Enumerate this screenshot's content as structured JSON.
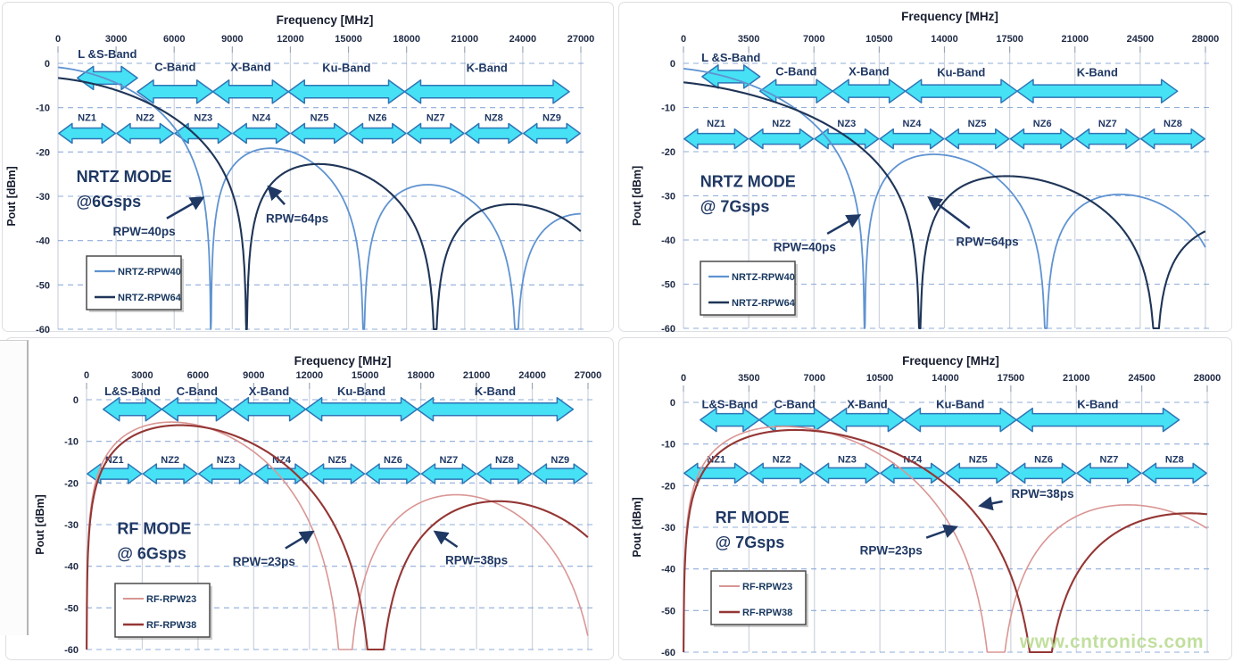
{
  "watermark": {
    "text": "www.cntronics.com",
    "color": "#b7da8e"
  },
  "colors": {
    "grid_vertical": "#cdd3dd",
    "grid_horizontal": "#7c9fd3",
    "tick_text": "#1f2a44",
    "axis_title": "#161c2e",
    "band_fill": "#46E1F4",
    "band_stroke": "#2E75B6",
    "navy_label": "#1F3864",
    "legend_border": "#4a4a4a",
    "legend_text": "#17375E",
    "annotation_arrow": "#1F3864"
  },
  "chart_data": [
    {
      "id": "nrtz-6gsps",
      "type": "line",
      "mode": "NRTZ",
      "sample_rate_gsps": 6,
      "x_axis": {
        "title": "Frequency [MHz]",
        "ticks": [
          0,
          3000,
          6000,
          9000,
          12000,
          15000,
          18000,
          21000,
          24000,
          27000
        ],
        "max_mhz": 27000
      },
      "y_axis": {
        "title": "Pout [dBm]",
        "ticks": [
          0,
          -10,
          -20,
          -30,
          -40,
          -50,
          -60
        ],
        "min_dbm": -60,
        "max_dbm": 0
      },
      "mode_label": {
        "lines": [
          "NRTZ MODE",
          "@6Gsps"
        ],
        "f_mhz": 950,
        "dbm": -25.6
      },
      "bands": [
        {
          "label": "L &S-Band",
          "f1_mhz": 1000,
          "f2_mhz": 4100,
          "arrow_dbm": -3.3,
          "label_dbm": 2.0
        },
        {
          "label": "C-Band",
          "f1_mhz": 4100,
          "f2_mhz": 8000,
          "arrow_dbm": -6.4,
          "label_dbm": -0.9
        },
        {
          "label": "X-Band",
          "f1_mhz": 8000,
          "f2_mhz": 11900,
          "arrow_dbm": -6.4,
          "label_dbm": -0.9
        },
        {
          "label": "Ku-Band",
          "f1_mhz": 11900,
          "f2_mhz": 17900,
          "arrow_dbm": -6.4,
          "label_dbm": -1.1
        },
        {
          "label": "K-Band",
          "f1_mhz": 17900,
          "f2_mhz": 26400,
          "arrow_dbm": -6.4,
          "label_dbm": -1.1
        }
      ],
      "nyquist_zones": {
        "labels": [
          "NZ1",
          "NZ2",
          "NZ3",
          "NZ4",
          "NZ5",
          "NZ6",
          "NZ7",
          "NZ8",
          "NZ9"
        ],
        "zone_width_mhz": 3000,
        "arrow_dbm": -15.8,
        "label_dbm": -12.2
      },
      "series": [
        {
          "name": "NRTZ-RPW40",
          "rpw_ps": 40,
          "color": "#5F93D1",
          "width": 1.8,
          "model": "nrtz",
          "tau_ps": 126.7,
          "p0_db": -0.9,
          "rolloff_db_per_ghz": 0.45,
          "nulls_mhz": [
            7893,
            15786,
            23680
          ]
        },
        {
          "name": "NRTZ-RPW64",
          "rpw_ps": 64,
          "color": "#1F3557",
          "width": 2.1,
          "model": "nrtz",
          "tau_ps": 102.7,
          "p0_db": -3.3,
          "rolloff_db_per_ghz": 0.45,
          "nulls_mhz": [
            9737,
            19474
          ]
        }
      ],
      "annotations": [
        {
          "text": "RPW=40ps",
          "f_mhz": 4450,
          "dbm": -37.9,
          "tip_f_mhz": 7450,
          "tip_dbm": -30.4
        },
        {
          "text": "RPW=64ps",
          "f_mhz": 12350,
          "dbm": -34.9,
          "tip_f_mhz": 10900,
          "tip_dbm": -28.0
        }
      ]
    },
    {
      "id": "nrtz-7gsps",
      "type": "line",
      "mode": "NRTZ",
      "sample_rate_gsps": 7,
      "x_axis": {
        "title": "Frequency [MHz]",
        "ticks": [
          0,
          3500,
          7000,
          10500,
          14000,
          17500,
          21000,
          24500,
          28000
        ],
        "max_mhz": 28000
      },
      "y_axis": {
        "title": "Pout [dBm]",
        "ticks": [
          0,
          -10,
          -20,
          -30,
          -40,
          -50,
          -60
        ],
        "min_dbm": -60,
        "max_dbm": 0
      },
      "mode_label": {
        "lines": [
          "NRTZ MODE",
          "@ 7Gsps"
        ],
        "f_mhz": 900,
        "dbm": -26.8
      },
      "bands": [
        {
          "label": "L &S-Band",
          "f1_mhz": 1000,
          "f2_mhz": 4100,
          "arrow_dbm": -3.0,
          "label_dbm": 1.2
        },
        {
          "label": "C-Band",
          "f1_mhz": 4100,
          "f2_mhz": 8000,
          "arrow_dbm": -6.3,
          "label_dbm": -1.9
        },
        {
          "label": "X-Band",
          "f1_mhz": 8000,
          "f2_mhz": 11900,
          "arrow_dbm": -6.3,
          "label_dbm": -1.9
        },
        {
          "label": "Ku-Band",
          "f1_mhz": 11900,
          "f2_mhz": 17900,
          "arrow_dbm": -6.3,
          "label_dbm": -2.1
        },
        {
          "label": "K-Band",
          "f1_mhz": 17900,
          "f2_mhz": 26500,
          "arrow_dbm": -6.3,
          "label_dbm": -2.1
        }
      ],
      "nyquist_zones": {
        "labels": [
          "NZ1",
          "NZ2",
          "NZ3",
          "NZ4",
          "NZ5",
          "NZ6",
          "NZ7",
          "NZ8"
        ],
        "zone_width_mhz": 3500,
        "arrow_dbm": -17.1,
        "label_dbm": -13.5
      },
      "series": [
        {
          "name": "NRTZ-RPW40",
          "rpw_ps": 40,
          "color": "#5F93D1",
          "width": 1.8,
          "model": "nrtz",
          "tau_ps": 102.9,
          "p0_db": -1.2,
          "rolloff_db_per_ghz": 0.45,
          "nulls_mhz": [
            9718,
            19436
          ]
        },
        {
          "name": "NRTZ-RPW64",
          "rpw_ps": 64,
          "color": "#1F3557",
          "width": 2.1,
          "model": "nrtz",
          "tau_ps": 78.9,
          "p0_db": -4.3,
          "rolloff_db_per_ghz": 0.45,
          "nulls_mhz": [
            12674,
            25348
          ]
        }
      ],
      "annotations": [
        {
          "text": "RPW=40ps",
          "f_mhz": 6500,
          "dbm": -41.5,
          "tip_f_mhz": 9400,
          "tip_dbm": -34.5
        },
        {
          "text": "RPW=64ps",
          "f_mhz": 16300,
          "dbm": -40.3,
          "tip_f_mhz": 13200,
          "tip_dbm": -30.5
        }
      ]
    },
    {
      "id": "rf-6gsps",
      "type": "line",
      "mode": "RF",
      "sample_rate_gsps": 6,
      "x_axis": {
        "title": "Frequency [MHz]",
        "ticks": [
          0,
          3000,
          6000,
          9000,
          12000,
          15000,
          18000,
          21000,
          24000,
          27000
        ],
        "max_mhz": 27000
      },
      "y_axis": {
        "title": "Pout [dBm]",
        "ticks": [
          0,
          -10,
          -20,
          -30,
          -40,
          -50,
          -60
        ],
        "min_dbm": -60,
        "max_dbm": 0
      },
      "mode_label": {
        "lines": [
          "RF MODE",
          "@ 6Gsps"
        ],
        "f_mhz": 1650,
        "dbm": -31.0
      },
      "bands": [
        {
          "label": "L&S-Band",
          "f1_mhz": 900,
          "f2_mhz": 4050,
          "arrow_dbm": -2.3,
          "label_dbm": 1.9
        },
        {
          "label": "C-Band",
          "f1_mhz": 4050,
          "f2_mhz": 7850,
          "arrow_dbm": -2.3,
          "label_dbm": 1.9
        },
        {
          "label": "X-Band",
          "f1_mhz": 7850,
          "f2_mhz": 11800,
          "arrow_dbm": -2.3,
          "label_dbm": 1.9
        },
        {
          "label": "Ku-Band",
          "f1_mhz": 11800,
          "f2_mhz": 17800,
          "arrow_dbm": -2.3,
          "label_dbm": 1.9
        },
        {
          "label": "K-Band",
          "f1_mhz": 17800,
          "f2_mhz": 26200,
          "arrow_dbm": -2.3,
          "label_dbm": 1.9
        }
      ],
      "nyquist_zones": {
        "labels": [
          "NZ1",
          "NZ2",
          "NZ3",
          "NZ4",
          "NZ5",
          "NZ6",
          "NZ7",
          "NZ8",
          "NZ9"
        ],
        "zone_width_mhz": 3000,
        "arrow_dbm": -17.8,
        "label_dbm": -14.4
      },
      "series": [
        {
          "name": "RF-RPW23",
          "rpw_ps": 23,
          "color": "#D99694",
          "width": 1.6,
          "model": "rf",
          "d_ps": 71.8,
          "p0_db": -0.4,
          "rolloff_db_per_ghz": 0.45,
          "dc_null": true,
          "nulls_mhz": [
            13928,
            27856
          ],
          "peak_dbm": -5.5,
          "peak_mhz": 5150
        },
        {
          "name": "RF-RPW38",
          "rpw_ps": 38,
          "color": "#943634",
          "width": 2.1,
          "model": "rf",
          "d_ps": 64.3,
          "p0_db": -0.9,
          "rolloff_db_per_ghz": 0.45,
          "dc_null": true,
          "nulls_mhz": [
            15552
          ],
          "peak_dbm": -6.3,
          "peak_mhz": 5750
        }
      ],
      "annotations": [
        {
          "text": "RPW=23ps",
          "f_mhz": 9550,
          "dbm": -38.8,
          "tip_f_mhz": 12150,
          "tip_dbm": -31.8
        },
        {
          "text": "RPW=38ps",
          "f_mhz": 21000,
          "dbm": -38.5,
          "tip_f_mhz": 18800,
          "tip_dbm": -31.8
        }
      ]
    },
    {
      "id": "rf-7gsps",
      "type": "line",
      "mode": "RF",
      "sample_rate_gsps": 7,
      "x_axis": {
        "title": "Frequency [MHz]",
        "ticks": [
          0,
          3500,
          7000,
          10500,
          14000,
          17500,
          21000,
          24500,
          28000
        ],
        "max_mhz": 28000
      },
      "y_axis": {
        "title": "Pout [dBm]",
        "ticks": [
          0,
          -10,
          -20,
          -30,
          -40,
          -50,
          -60
        ],
        "min_dbm": -60,
        "max_dbm": 0
      },
      "mode_label": {
        "lines": [
          "RF MODE",
          "@ 7Gsps"
        ],
        "f_mhz": 1700,
        "dbm": -27.6
      },
      "bands": [
        {
          "label": "L&S-Band",
          "f1_mhz": 900,
          "f2_mhz": 4050,
          "arrow_dbm": -4.2,
          "label_dbm": -0.5
        },
        {
          "label": "C-Band",
          "f1_mhz": 4050,
          "f2_mhz": 7850,
          "arrow_dbm": -4.2,
          "label_dbm": -0.5
        },
        {
          "label": "X-Band",
          "f1_mhz": 7850,
          "f2_mhz": 11800,
          "arrow_dbm": -4.2,
          "label_dbm": -0.5
        },
        {
          "label": "Ku-Band",
          "f1_mhz": 11800,
          "f2_mhz": 17800,
          "arrow_dbm": -4.2,
          "label_dbm": -0.5
        },
        {
          "label": "K-Band",
          "f1_mhz": 17800,
          "f2_mhz": 26500,
          "arrow_dbm": -4.2,
          "label_dbm": -0.5
        }
      ],
      "nyquist_zones": {
        "labels": [
          "NZ1",
          "NZ2",
          "NZ3",
          "NZ4",
          "NZ5",
          "NZ6",
          "NZ7",
          "NZ8"
        ],
        "zone_width_mhz": 3500,
        "arrow_dbm": -17.0,
        "label_dbm": -13.6
      },
      "series": [
        {
          "name": "RF-RPW23",
          "rpw_ps": 23,
          "color": "#D99694",
          "width": 1.6,
          "model": "rf",
          "d_ps": 59.9,
          "p0_db": -0.4,
          "rolloff_db_per_ghz": 0.45,
          "dc_null": true,
          "nulls_mhz": [
            16694
          ],
          "peak_dbm": -6.0,
          "peak_mhz": 6180
        },
        {
          "name": "RF-RPW38",
          "rpw_ps": 38,
          "color": "#943634",
          "width": 2.1,
          "model": "rf",
          "d_ps": 52.4,
          "p0_db": -0.9,
          "rolloff_db_per_ghz": 0.45,
          "dc_null": true,
          "nulls_mhz": [
            19084
          ],
          "peak_dbm": -6.9,
          "peak_mhz": 7060
        }
      ],
      "annotations": [
        {
          "text": "RPW=23ps",
          "f_mhz": 11100,
          "dbm": -35.5,
          "tip_f_mhz": 14550,
          "tip_dbm": -30.0
        },
        {
          "text": "RPW=38ps",
          "f_mhz": 19200,
          "dbm": -21.9,
          "tip_f_mhz": 15900,
          "tip_dbm": -24.8
        }
      ]
    }
  ]
}
